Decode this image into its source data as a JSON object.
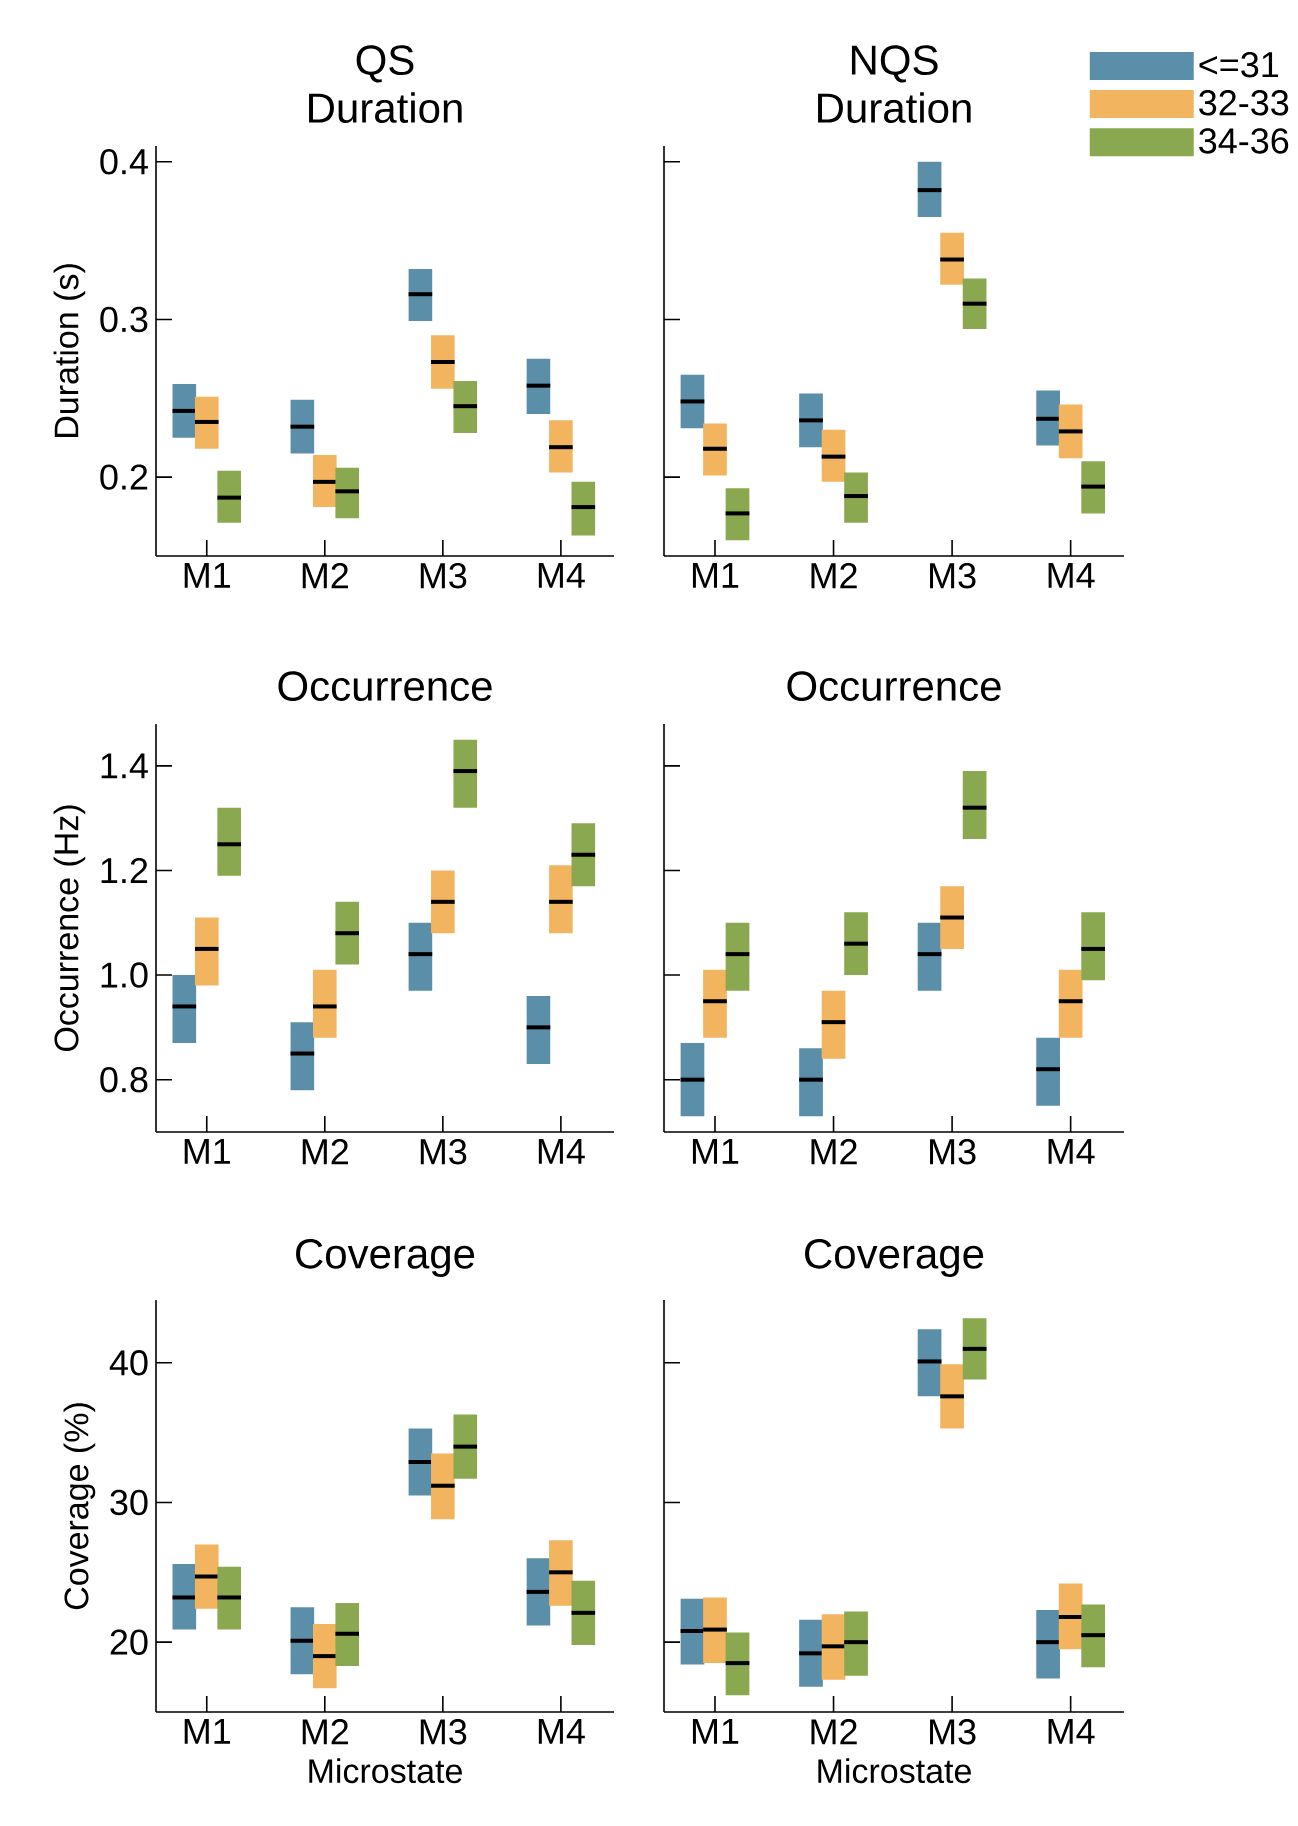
{
  "chart_data": [
    {
      "type": "box",
      "title": "QS",
      "subtitle": "Duration",
      "ylabel": "Duration (s)",
      "categories": [
        "M1",
        "M2",
        "M3",
        "M4"
      ],
      "ylim": [
        0.15,
        0.41
      ],
      "yticks": [
        0.2,
        0.3,
        0.4
      ],
      "series": [
        {
          "color": "#5b8ea9",
          "boxes": [
            {
              "low": 0.225,
              "q1": 0.225,
              "median": 0.242,
              "q3": 0.259,
              "high": 0.259
            },
            {
              "low": 0.215,
              "q1": 0.215,
              "median": 0.232,
              "q3": 0.249,
              "high": 0.249
            },
            {
              "low": 0.299,
              "q1": 0.299,
              "median": 0.316,
              "q3": 0.332,
              "high": 0.332
            },
            {
              "low": 0.24,
              "q1": 0.24,
              "median": 0.258,
              "q3": 0.275,
              "high": 0.275
            }
          ]
        },
        {
          "color": "#f2b45f",
          "boxes": [
            {
              "low": 0.218,
              "q1": 0.218,
              "median": 0.235,
              "q3": 0.251,
              "high": 0.251
            },
            {
              "low": 0.181,
              "q1": 0.181,
              "median": 0.197,
              "q3": 0.214,
              "high": 0.214
            },
            {
              "low": 0.256,
              "q1": 0.256,
              "median": 0.273,
              "q3": 0.29,
              "high": 0.29
            },
            {
              "low": 0.203,
              "q1": 0.203,
              "median": 0.219,
              "q3": 0.236,
              "high": 0.236
            }
          ]
        },
        {
          "color": "#8aa84f",
          "boxes": [
            {
              "low": 0.171,
              "q1": 0.171,
              "median": 0.187,
              "q3": 0.204,
              "high": 0.204
            },
            {
              "low": 0.174,
              "q1": 0.174,
              "median": 0.191,
              "q3": 0.206,
              "high": 0.206
            },
            {
              "low": 0.228,
              "q1": 0.228,
              "median": 0.245,
              "q3": 0.261,
              "high": 0.261
            },
            {
              "low": 0.163,
              "q1": 0.163,
              "median": 0.181,
              "q3": 0.197,
              "high": 0.197
            }
          ]
        }
      ]
    },
    {
      "type": "box",
      "title": "NQS",
      "subtitle": "Duration",
      "categories": [
        "M1",
        "M2",
        "M3",
        "M4"
      ],
      "ylim": [
        0.15,
        0.41
      ],
      "yticks": [
        0.2,
        0.3,
        0.4
      ],
      "tick_labels": "x",
      "legend": "top right",
      "series": [
        {
          "name": "<=31",
          "color": "#5b8ea9",
          "boxes": [
            {
              "low": 0.231,
              "q1": 0.231,
              "median": 0.248,
              "q3": 0.265,
              "high": 0.265
            },
            {
              "low": 0.219,
              "q1": 0.219,
              "median": 0.236,
              "q3": 0.253,
              "high": 0.253
            },
            {
              "low": 0.365,
              "q1": 0.365,
              "median": 0.382,
              "q3": 0.4,
              "high": 0.4
            },
            {
              "low": 0.22,
              "q1": 0.22,
              "median": 0.237,
              "q3": 0.255,
              "high": 0.255
            }
          ]
        },
        {
          "name": "32-33",
          "color": "#f2b45f",
          "boxes": [
            {
              "low": 0.201,
              "q1": 0.201,
              "median": 0.218,
              "q3": 0.234,
              "high": 0.234
            },
            {
              "low": 0.197,
              "q1": 0.197,
              "median": 0.213,
              "q3": 0.23,
              "high": 0.23
            },
            {
              "low": 0.322,
              "q1": 0.322,
              "median": 0.338,
              "q3": 0.355,
              "high": 0.355
            },
            {
              "low": 0.212,
              "q1": 0.212,
              "median": 0.229,
              "q3": 0.246,
              "high": 0.246
            }
          ]
        },
        {
          "name": "34-36",
          "color": "#8aa84f",
          "boxes": [
            {
              "low": 0.16,
              "q1": 0.16,
              "median": 0.177,
              "q3": 0.193,
              "high": 0.193
            },
            {
              "low": 0.171,
              "q1": 0.171,
              "median": 0.188,
              "q3": 0.203,
              "high": 0.203
            },
            {
              "low": 0.294,
              "q1": 0.294,
              "median": 0.31,
              "q3": 0.326,
              "high": 0.326
            },
            {
              "low": 0.177,
              "q1": 0.177,
              "median": 0.194,
              "q3": 0.21,
              "high": 0.21
            }
          ]
        }
      ]
    },
    {
      "type": "box",
      "title": "Occurrence",
      "ylabel": "Occurrence (Hz)",
      "categories": [
        "M1",
        "M2",
        "M3",
        "M4"
      ],
      "ylim": [
        0.7,
        1.48
      ],
      "yticks": [
        0.8,
        {
          "value": 1.0,
          "label": "1.0"
        },
        1.2,
        1.4
      ],
      "series": [
        {
          "color": "#5b8ea9",
          "boxes": [
            {
              "low": 0.87,
              "q1": 0.87,
              "median": 0.94,
              "q3": 1.0,
              "high": 1.0
            },
            {
              "low": 0.78,
              "q1": 0.78,
              "median": 0.85,
              "q3": 0.91,
              "high": 0.91
            },
            {
              "low": 0.97,
              "q1": 0.97,
              "median": 1.04,
              "q3": 1.1,
              "high": 1.1
            },
            {
              "low": 0.83,
              "q1": 0.83,
              "median": 0.9,
              "q3": 0.96,
              "high": 0.96
            }
          ]
        },
        {
          "color": "#f2b45f",
          "boxes": [
            {
              "low": 0.98,
              "q1": 0.98,
              "median": 1.05,
              "q3": 1.11,
              "high": 1.11
            },
            {
              "low": 0.88,
              "q1": 0.88,
              "median": 0.94,
              "q3": 1.01,
              "high": 1.01
            },
            {
              "low": 1.08,
              "q1": 1.08,
              "median": 1.14,
              "q3": 1.2,
              "high": 1.2
            },
            {
              "low": 1.08,
              "q1": 1.08,
              "median": 1.14,
              "q3": 1.21,
              "high": 1.21
            }
          ]
        },
        {
          "color": "#8aa84f",
          "boxes": [
            {
              "low": 1.19,
              "q1": 1.19,
              "median": 1.25,
              "q3": 1.32,
              "high": 1.32
            },
            {
              "low": 1.02,
              "q1": 1.02,
              "median": 1.08,
              "q3": 1.14,
              "high": 1.14
            },
            {
              "low": 1.32,
              "q1": 1.32,
              "median": 1.39,
              "q3": 1.45,
              "high": 1.45
            },
            {
              "low": 1.17,
              "q1": 1.17,
              "median": 1.23,
              "q3": 1.29,
              "high": 1.29
            }
          ]
        }
      ]
    },
    {
      "type": "box",
      "title": "Occurrence",
      "categories": [
        "M1",
        "M2",
        "M3",
        "M4"
      ],
      "ylim": [
        0.7,
        1.48
      ],
      "yticks": [
        0.8,
        1.0,
        1.2,
        1.4
      ],
      "tick_labels": "x",
      "series": [
        {
          "color": "#5b8ea9",
          "boxes": [
            {
              "low": 0.73,
              "q1": 0.73,
              "median": 0.8,
              "q3": 0.87,
              "high": 0.87
            },
            {
              "low": 0.73,
              "q1": 0.73,
              "median": 0.8,
              "q3": 0.86,
              "high": 0.86
            },
            {
              "low": 0.97,
              "q1": 0.97,
              "median": 1.04,
              "q3": 1.1,
              "high": 1.1
            },
            {
              "low": 0.75,
              "q1": 0.75,
              "median": 0.82,
              "q3": 0.88,
              "high": 0.88
            }
          ]
        },
        {
          "color": "#f2b45f",
          "boxes": [
            {
              "low": 0.88,
              "q1": 0.88,
              "median": 0.95,
              "q3": 1.01,
              "high": 1.01
            },
            {
              "low": 0.84,
              "q1": 0.84,
              "median": 0.91,
              "q3": 0.97,
              "high": 0.97
            },
            {
              "low": 1.05,
              "q1": 1.05,
              "median": 1.11,
              "q3": 1.17,
              "high": 1.17
            },
            {
              "low": 0.88,
              "q1": 0.88,
              "median": 0.95,
              "q3": 1.01,
              "high": 1.01
            }
          ]
        },
        {
          "color": "#8aa84f",
          "boxes": [
            {
              "low": 0.97,
              "q1": 0.97,
              "median": 1.04,
              "q3": 1.1,
              "high": 1.1
            },
            {
              "low": 1.0,
              "q1": 1.0,
              "median": 1.06,
              "q3": 1.12,
              "high": 1.12
            },
            {
              "low": 1.26,
              "q1": 1.26,
              "median": 1.32,
              "q3": 1.39,
              "high": 1.39
            },
            {
              "low": 0.99,
              "q1": 0.99,
              "median": 1.05,
              "q3": 1.12,
              "high": 1.12
            }
          ]
        }
      ]
    },
    {
      "type": "box",
      "title": "Coverage",
      "xlabel": "Microstate",
      "ylabel": "Coverage (%)",
      "categories": [
        "M1",
        "M2",
        "M3",
        "M4"
      ],
      "ylim": [
        15,
        44.5
      ],
      "yticks": [
        20,
        30,
        40
      ],
      "series": [
        {
          "color": "#5b8ea9",
          "boxes": [
            {
              "low": 20.9,
              "q1": 20.9,
              "median": 23.2,
              "q3": 25.6,
              "high": 25.6
            },
            {
              "low": 17.7,
              "q1": 17.7,
              "median": 20.1,
              "q3": 22.5,
              "high": 22.5
            },
            {
              "low": 30.5,
              "q1": 30.5,
              "median": 32.9,
              "q3": 35.3,
              "high": 35.3
            },
            {
              "low": 21.2,
              "q1": 21.2,
              "median": 23.6,
              "q3": 26.0,
              "high": 26.0
            }
          ]
        },
        {
          "color": "#f2b45f",
          "boxes": [
            {
              "low": 22.4,
              "q1": 22.4,
              "median": 24.7,
              "q3": 27.0,
              "high": 27.0
            },
            {
              "low": 16.7,
              "q1": 16.7,
              "median": 19.0,
              "q3": 21.3,
              "high": 21.3
            },
            {
              "low": 28.8,
              "q1": 28.8,
              "median": 31.2,
              "q3": 33.5,
              "high": 33.5
            },
            {
              "low": 22.6,
              "q1": 22.6,
              "median": 25.0,
              "q3": 27.3,
              "high": 27.3
            }
          ]
        },
        {
          "color": "#8aa84f",
          "boxes": [
            {
              "low": 20.9,
              "q1": 20.9,
              "median": 23.2,
              "q3": 25.4,
              "high": 25.4
            },
            {
              "low": 18.3,
              "q1": 18.3,
              "median": 20.6,
              "q3": 22.8,
              "high": 22.8
            },
            {
              "low": 31.7,
              "q1": 31.7,
              "median": 34.0,
              "q3": 36.3,
              "high": 36.3
            },
            {
              "low": 19.8,
              "q1": 19.8,
              "median": 22.1,
              "q3": 24.4,
              "high": 24.4
            }
          ]
        }
      ]
    },
    {
      "type": "box",
      "title": "Coverage",
      "xlabel": "Microstate",
      "categories": [
        "M1",
        "M2",
        "M3",
        "M4"
      ],
      "ylim": [
        15,
        44.5
      ],
      "yticks": [
        20,
        30,
        40
      ],
      "tick_labels": "x",
      "series": [
        {
          "color": "#5b8ea9",
          "boxes": [
            {
              "low": 18.4,
              "q1": 18.4,
              "median": 20.8,
              "q3": 23.1,
              "high": 23.1
            },
            {
              "low": 16.8,
              "q1": 16.8,
              "median": 19.2,
              "q3": 21.6,
              "high": 21.6
            },
            {
              "low": 37.6,
              "q1": 37.6,
              "median": 40.1,
              "q3": 42.4,
              "high": 42.4
            },
            {
              "low": 17.4,
              "q1": 17.4,
              "median": 20.0,
              "q3": 22.3,
              "high": 22.3
            }
          ]
        },
        {
          "color": "#f2b45f",
          "boxes": [
            {
              "low": 18.5,
              "q1": 18.5,
              "median": 20.9,
              "q3": 23.2,
              "high": 23.2
            },
            {
              "low": 17.3,
              "q1": 17.3,
              "median": 19.7,
              "q3": 22.0,
              "high": 22.0
            },
            {
              "low": 35.3,
              "q1": 35.3,
              "median": 37.6,
              "q3": 39.9,
              "high": 39.9
            },
            {
              "low": 19.5,
              "q1": 19.5,
              "median": 21.8,
              "q3": 24.2,
              "high": 24.2
            }
          ]
        },
        {
          "color": "#8aa84f",
          "boxes": [
            {
              "low": 16.2,
              "q1": 16.2,
              "median": 18.5,
              "q3": 20.7,
              "high": 20.7
            },
            {
              "low": 17.6,
              "q1": 17.6,
              "median": 20.0,
              "q3": 22.2,
              "high": 22.2
            },
            {
              "low": 38.8,
              "q1": 38.8,
              "median": 41.0,
              "q3": 43.2,
              "high": 43.2
            },
            {
              "low": 18.2,
              "q1": 18.2,
              "median": 20.5,
              "q3": 22.7,
              "high": 22.7
            }
          ]
        }
      ]
    }
  ]
}
